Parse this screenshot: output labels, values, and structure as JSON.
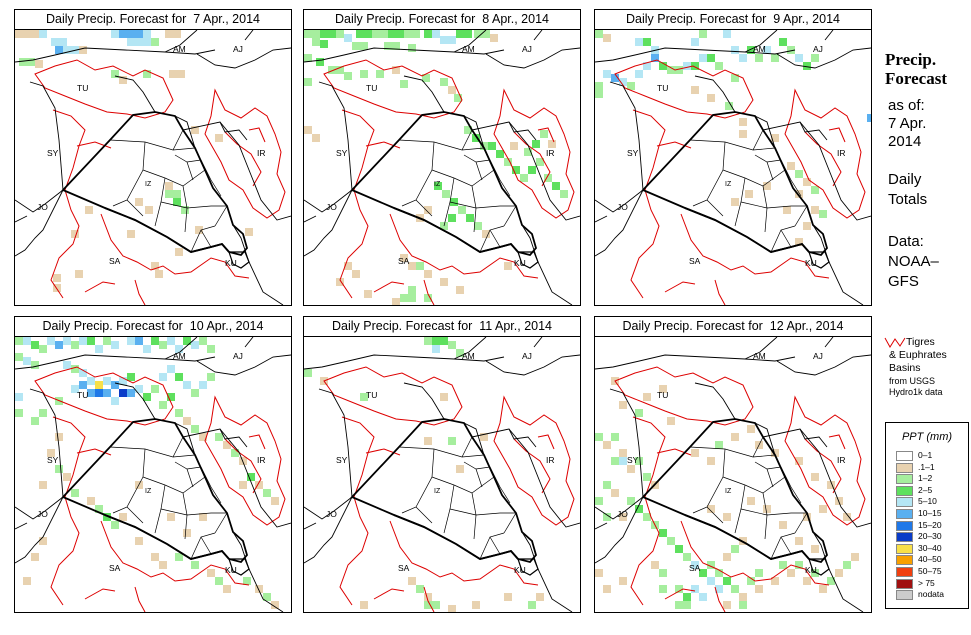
{
  "panels": [
    {
      "title": "Daily Precip. Forecast for  7 Apr., 2014",
      "day": 7
    },
    {
      "title": "Daily Precip. Forecast for  8 Apr., 2014",
      "day": 8
    },
    {
      "title": "Daily Precip. Forecast for  9 Apr., 2014",
      "day": 9
    },
    {
      "title": "Daily Precip. Forecast for  10 Apr., 2014",
      "day": 10
    },
    {
      "title": "Daily Precip. Forecast for  11 Apr., 2014",
      "day": 11
    },
    {
      "title": "Daily Precip. Forecast for  12 Apr., 2014",
      "day": 12
    }
  ],
  "map_labels": [
    "AM",
    "AJ",
    "TU",
    "SY",
    "IR",
    "JO",
    "SA",
    "KU",
    "IZ"
  ],
  "sidebar": {
    "title_line1": "Precip.",
    "title_line2": "Forecast",
    "asof_line1": "as of:",
    "asof_line2": "7 Apr.",
    "asof_line3": "2014",
    "daily_line1": "Daily",
    "daily_line2": "Totals",
    "data_line1": "Data:",
    "data_line2": "NOAA–",
    "data_line3": "GFS",
    "basin_line1": "Tigres",
    "basin_line2": "& Euphrates",
    "basin_line3": "Basins",
    "basin_line4": "from USGS",
    "basin_line5": "Hydro1k data"
  },
  "legend": {
    "title": "PPT (mm)",
    "items": [
      {
        "label": "0–1",
        "color": "#ffffff"
      },
      {
        "label": ".1–1",
        "color": "#e8d2b0"
      },
      {
        "label": "1–2",
        "color": "#a6ee9e"
      },
      {
        "label": "2–5",
        "color": "#5ee05e"
      },
      {
        "label": "5–10",
        "color": "#b4e6f4"
      },
      {
        "label": "10–15",
        "color": "#5ab0f0"
      },
      {
        "label": "15–20",
        "color": "#1f78e8"
      },
      {
        "label": "20–30",
        "color": "#0a3cc8"
      },
      {
        "label": "30–40",
        "color": "#f8e048"
      },
      {
        "label": "40–50",
        "color": "#f8a000"
      },
      {
        "label": "50–75",
        "color": "#f04010"
      },
      {
        "label": "> 75",
        "color": "#a01010"
      },
      {
        "label": "nodata",
        "color": "#cccccc"
      }
    ]
  },
  "colors": {
    "basin": "#dd0000",
    "border": "#000000"
  }
}
